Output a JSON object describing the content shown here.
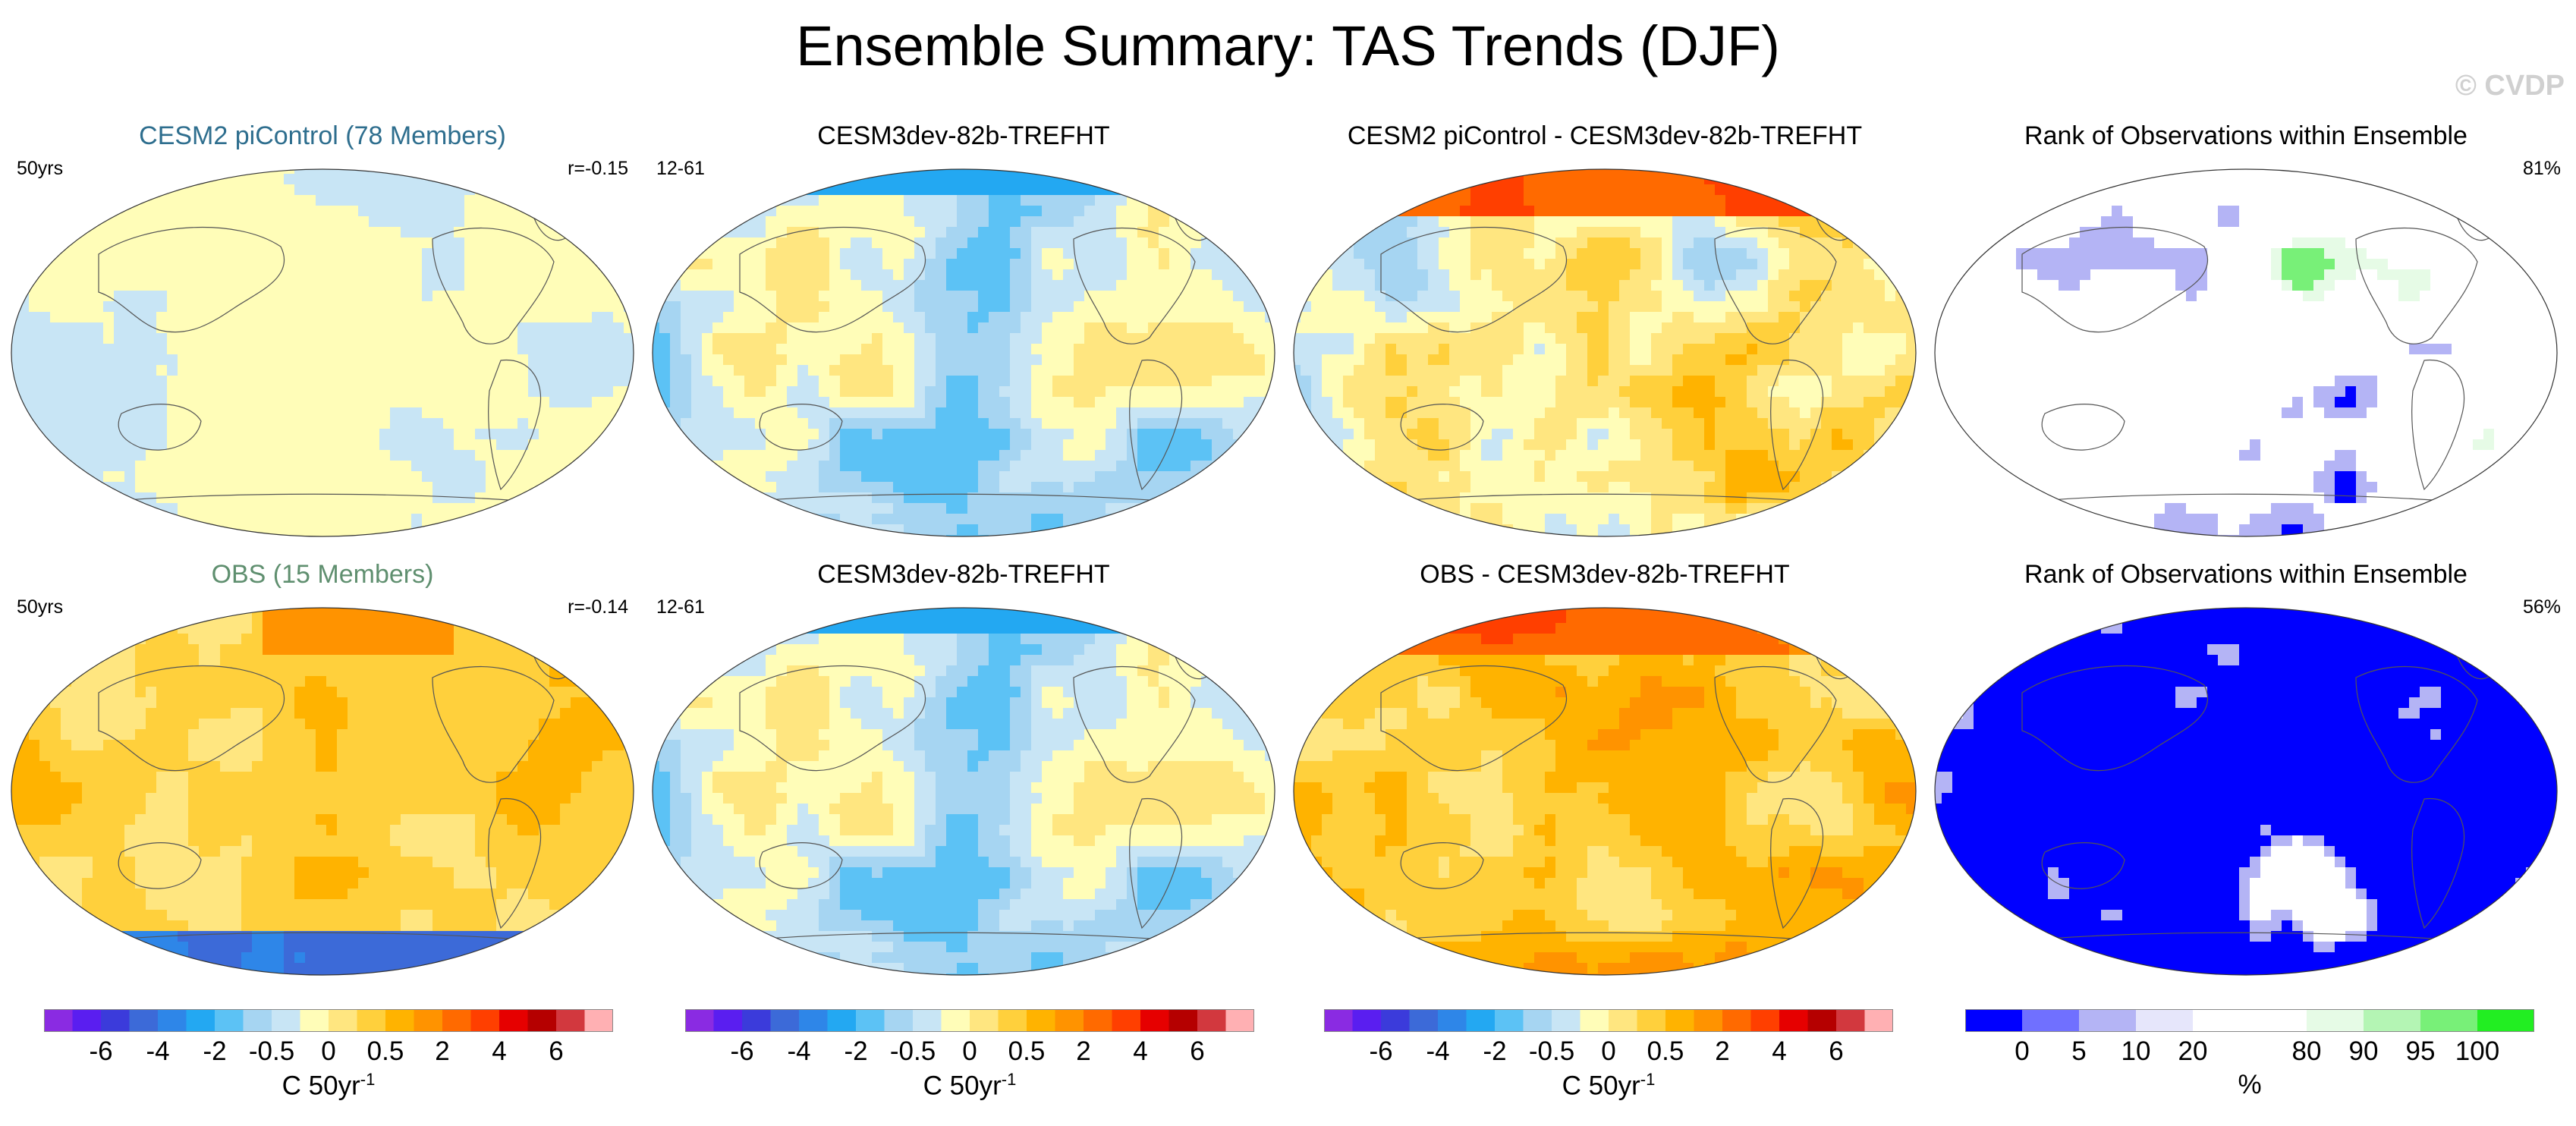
{
  "title": "Ensemble Summary: TAS Trends (DJF)",
  "watermark": "© CVDP",
  "panels": [
    {
      "id": "p1",
      "title": "CESM2 piControl (78 Members)",
      "title_color": "#2e6e8e",
      "left": "50yrs",
      "right": "r=-0.15",
      "field": "pi"
    },
    {
      "id": "p2",
      "title": "CESM3dev-82b-TREFHT",
      "title_color": "#000000",
      "left": "12-61",
      "right": "",
      "field": "dev"
    },
    {
      "id": "p3",
      "title": "CESM2 piControl - CESM3dev-82b-TREFHT",
      "title_color": "#000000",
      "left": "",
      "right": "",
      "field": "diff1"
    },
    {
      "id": "p4",
      "title": "Rank of Observations within Ensemble",
      "title_color": "#000000",
      "left": "",
      "right": "81%",
      "field": "rank1"
    },
    {
      "id": "p5",
      "title": "OBS (15 Members)",
      "title_color": "#5f8f6f",
      "left": "50yrs",
      "right": "r=-0.14",
      "field": "obs"
    },
    {
      "id": "p6",
      "title": "CESM3dev-82b-TREFHT",
      "title_color": "#000000",
      "left": "12-61",
      "right": "",
      "field": "dev2"
    },
    {
      "id": "p7",
      "title": "OBS - CESM3dev-82b-TREFHT",
      "title_color": "#000000",
      "left": "",
      "right": "",
      "field": "diff2"
    },
    {
      "id": "p8",
      "title": "Rank of Observations within Ensemble",
      "title_color": "#000000",
      "left": "",
      "right": "56%",
      "field": "rank2"
    }
  ],
  "colorbars": {
    "temp": {
      "colors": [
        "#8a2be2",
        "#5a1ef0",
        "#3b3bdb",
        "#3c6ad8",
        "#2e86e8",
        "#23a8f2",
        "#5cc2f5",
        "#a6d5f2",
        "#c8e5f5",
        "#fffdb8",
        "#ffe680",
        "#ffd03c",
        "#ffb300",
        "#ff9300",
        "#ff6a00",
        "#ff3f00",
        "#e60000",
        "#b50000",
        "#d2383e",
        "#ffb0b3"
      ],
      "ticks": [
        "-6",
        "-4",
        "-2",
        "-0.5",
        "0",
        "0.5",
        "2",
        "4",
        "6"
      ],
      "tick_positions": [
        2,
        4,
        6,
        8,
        10,
        12,
        14,
        16,
        18
      ],
      "unit": "C 50yr",
      "unit_sup": "-1"
    },
    "rank": {
      "colors": [
        "#0000ff",
        "#7070ff",
        "#b4b4f5",
        "#e6e6fb",
        "#ffffff",
        "#ffffff",
        "#e6fbe6",
        "#b4f5b4",
        "#78f078",
        "#22ee22"
      ],
      "ticks": [
        "0",
        "5",
        "10",
        "20",
        "80",
        "90",
        "95",
        "100"
      ],
      "tick_positions": [
        1,
        2,
        3,
        4,
        6,
        7,
        8,
        9
      ],
      "unit": "%"
    }
  },
  "chart_data": {
    "type": "map-grid",
    "title": "Ensemble Summary: TAS Trends (DJF)",
    "units": "C 50yr-1",
    "contour_levels": [
      -6,
      -5,
      -4,
      -3,
      -2,
      -1,
      -0.5,
      -0.25,
      0,
      0.25,
      0.5,
      1,
      2,
      3,
      4,
      5,
      6
    ],
    "rank_levels_percent": [
      0,
      5,
      10,
      20,
      80,
      90,
      95,
      100
    ],
    "panels": [
      {
        "name": "CESM2 piControl (78 Members)",
        "pattern_correlation": -0.15,
        "period": "50yrs",
        "dominant_range": [
          -0.5,
          0.5
        ]
      },
      {
        "name": "CESM3dev-82b-TREFHT",
        "years": "12-61",
        "dominant_range": [
          -2,
          2
        ]
      },
      {
        "name": "CESM2 piControl - CESM3dev-82b-TREFHT",
        "dominant_range": [
          -2,
          4
        ]
      },
      {
        "name": "Rank of Observations within Ensemble",
        "summary_percent": 81
      },
      {
        "name": "OBS (15 Members)",
        "pattern_correlation": -0.14,
        "period": "50yrs",
        "dominant_range": [
          0.5,
          2
        ]
      },
      {
        "name": "CESM3dev-82b-TREFHT",
        "years": "12-61",
        "dominant_range": [
          -2,
          2
        ]
      },
      {
        "name": "OBS - CESM3dev-82b-TREFHT",
        "dominant_range": [
          0.5,
          4
        ]
      },
      {
        "name": "Rank of Observations within Ensemble",
        "summary_percent": 56
      }
    ]
  }
}
